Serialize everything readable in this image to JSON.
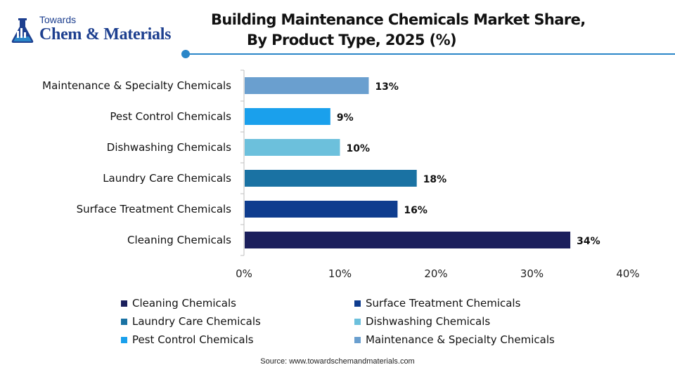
{
  "brand": {
    "top": "Towards",
    "main": "Chem & Materials"
  },
  "header": {
    "title_line1": "Building Maintenance Chemicals Market Share,",
    "title_line2": "By Product Type, 2025 (%)"
  },
  "chart_data": {
    "type": "bar",
    "orientation": "horizontal",
    "title": "Building Maintenance Chemicals Market Share, By Product Type, 2025 (%)",
    "categories": [
      "Cleaning Chemicals",
      "Surface Treatment Chemicals",
      "Laundry Care Chemicals",
      "Dishwashing Chemicals",
      "Pest Control Chemicals",
      "Maintenance & Specialty Chemicals"
    ],
    "values": [
      34,
      16,
      18,
      10,
      9,
      13
    ],
    "value_labels": [
      "34%",
      "16%",
      "18%",
      "10%",
      "9%",
      "13%"
    ],
    "colors": [
      "#1b1f5c",
      "#0e3c8e",
      "#1a72a3",
      "#6cc0dc",
      "#1aa0ec",
      "#6a9fcf"
    ],
    "xlim": [
      0,
      40
    ],
    "xticks": [
      0,
      10,
      20,
      30,
      40
    ],
    "xtick_labels": [
      "0%",
      "10%",
      "20%",
      "30%",
      "40%"
    ],
    "grid": false,
    "legend_position": "bottom"
  },
  "legend": [
    {
      "label": "Cleaning Chemicals",
      "color": "#1b1f5c"
    },
    {
      "label": "Surface Treatment Chemicals",
      "color": "#0e3c8e"
    },
    {
      "label": "Laundry Care Chemicals",
      "color": "#1a72a3"
    },
    {
      "label": "Dishwashing Chemicals",
      "color": "#6cc0dc"
    },
    {
      "label": "Pest Control Chemicals",
      "color": "#1aa0ec"
    },
    {
      "label": "Maintenance & Specialty Chemicals",
      "color": "#6a9fcf"
    }
  ],
  "source": "Source: www.towardschemandmaterials.com"
}
